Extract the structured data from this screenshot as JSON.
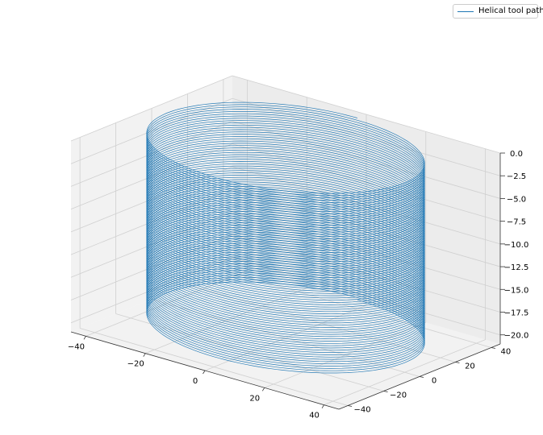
{
  "chart_data": {
    "type": "line",
    "projection": "3d",
    "title": "",
    "xlabel": "",
    "ylabel": "",
    "zlabel": "",
    "xlim": [
      -45,
      45
    ],
    "ylim": [
      -45,
      45
    ],
    "zlim": [
      -21,
      0
    ],
    "x_ticks": [
      "−40",
      "−20",
      "0",
      "20",
      "40"
    ],
    "y_ticks": [
      "−40",
      "−20",
      "0",
      "20",
      "40"
    ],
    "z_ticks": [
      "0.0",
      "−2.5",
      "−5.0",
      "−7.5",
      "−10.0",
      "−12.5",
      "−15.0",
      "−17.5",
      "−20.0"
    ],
    "grid": true,
    "legend_position": "top-right",
    "series": [
      {
        "name": "Helical tool path",
        "color": "#1f77b4",
        "shape": "helix",
        "radius": 40,
        "z_start": 0,
        "z_end": -20,
        "turns": 80
      }
    ]
  }
}
